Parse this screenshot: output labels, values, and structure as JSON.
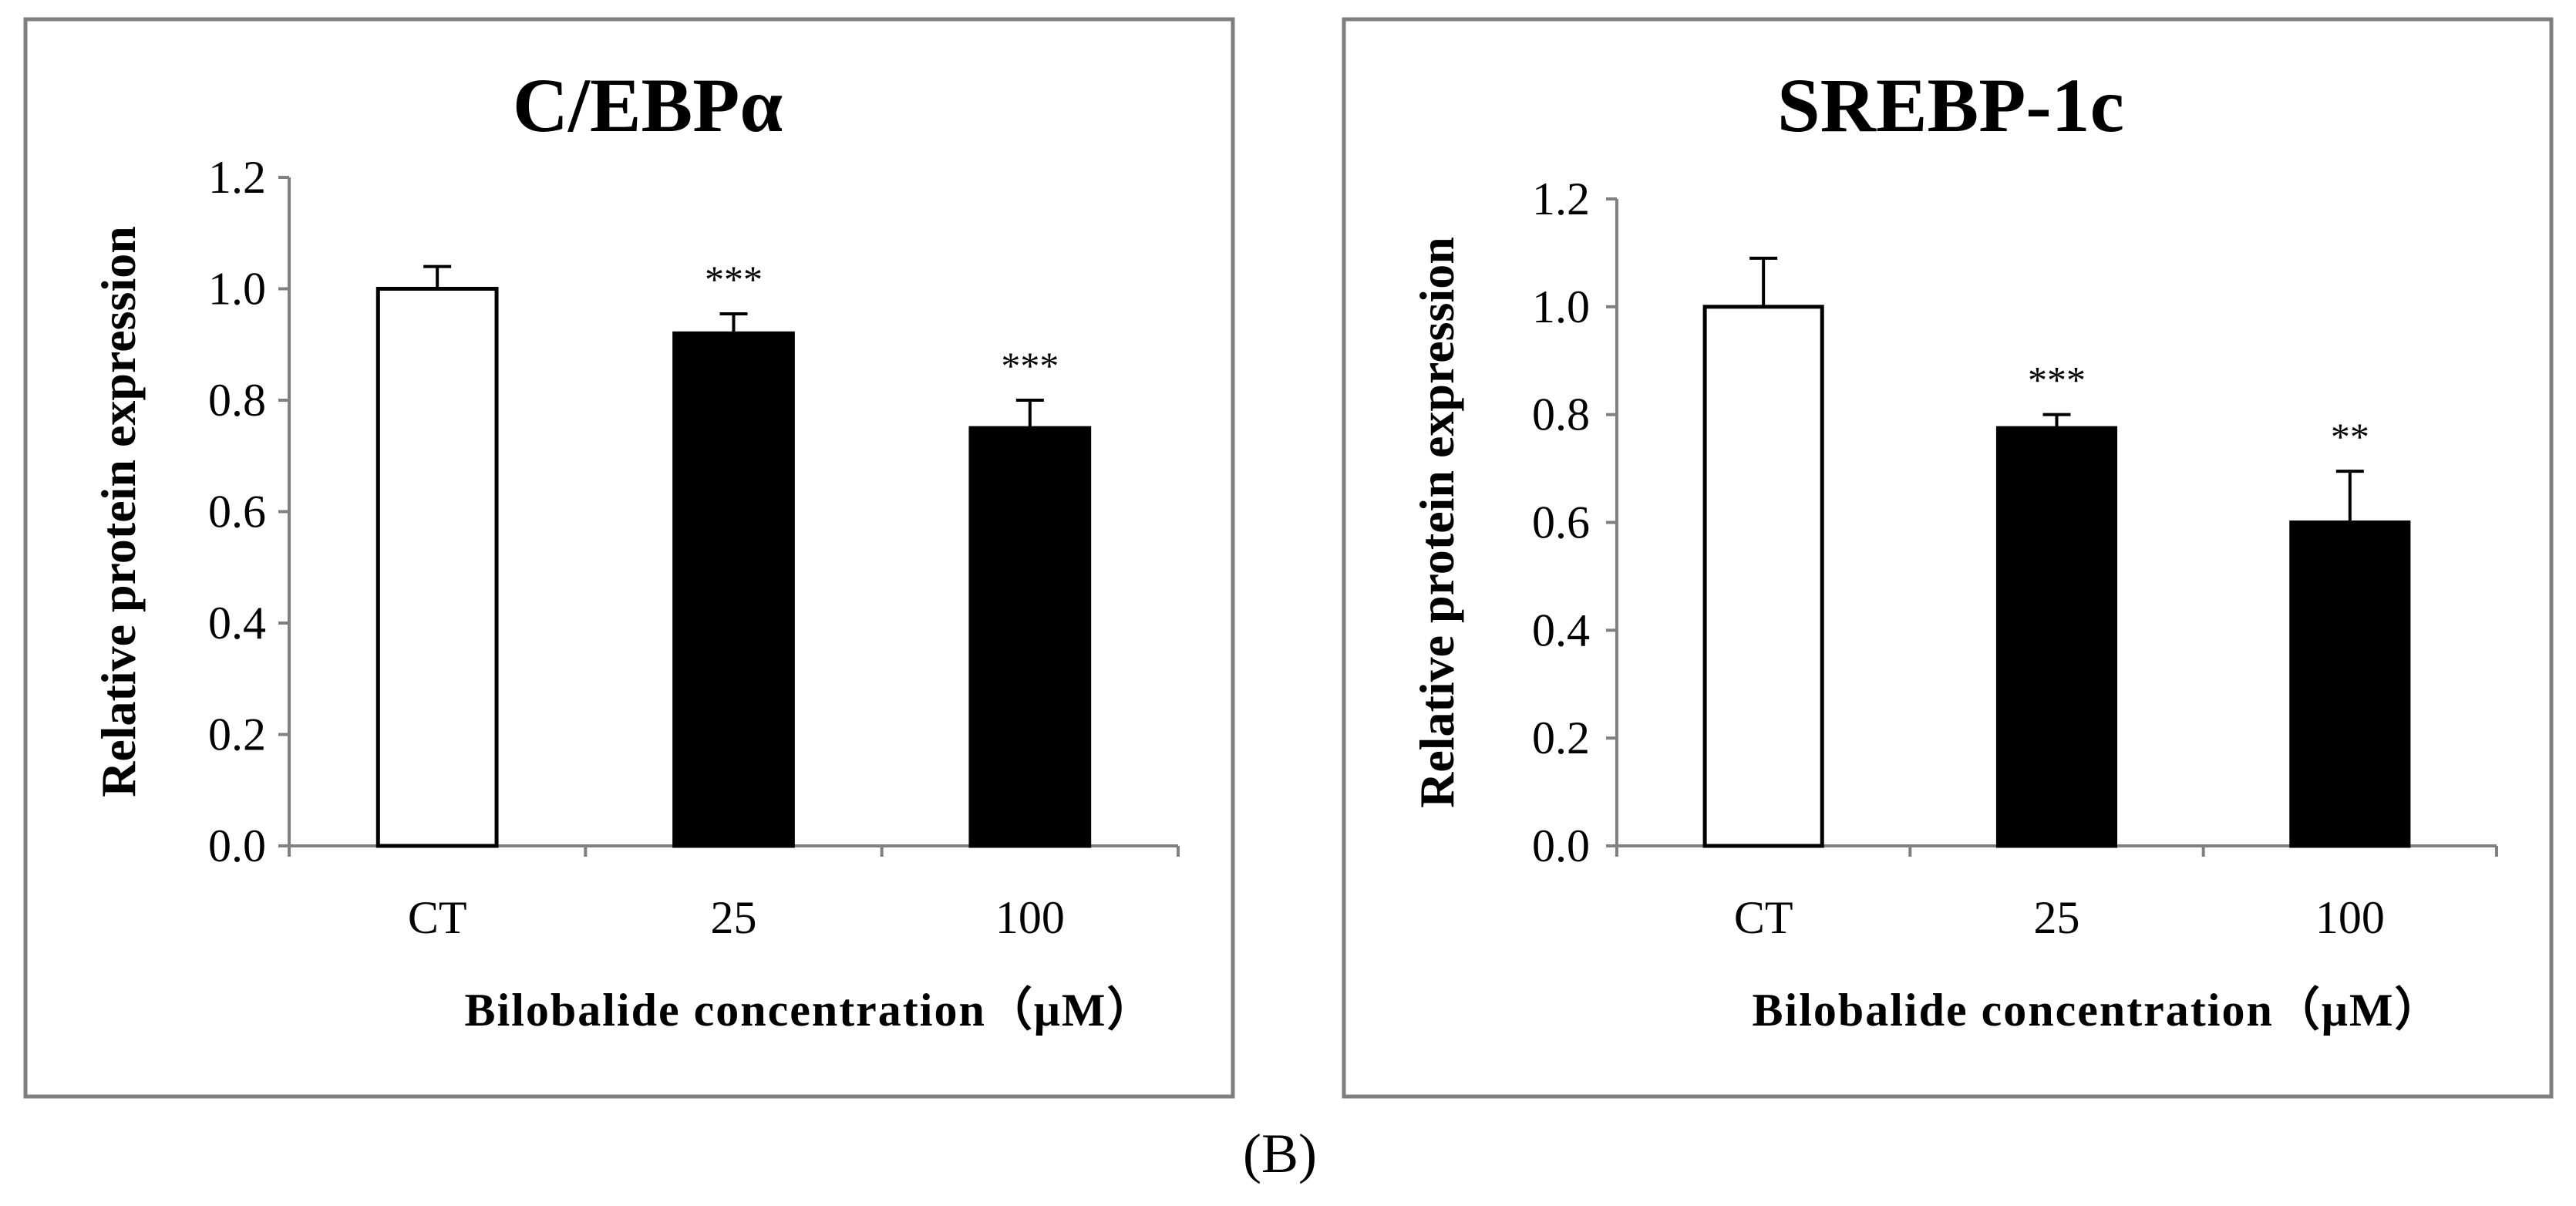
{
  "chart_data": [
    {
      "type": "bar",
      "title": "C/EBPα",
      "xlabel": "Bilobalide concentration（μM）",
      "ylabel": "Relative protein expression",
      "categories": [
        "CT",
        "25",
        "100"
      ],
      "values": [
        1.0,
        0.92,
        0.75
      ],
      "errors": [
        0.04,
        0.035,
        0.05
      ],
      "significance": [
        "",
        "***",
        "***"
      ],
      "bar_colors": [
        "#ffffff",
        "#000000",
        "#000000"
      ],
      "ylim": [
        0.0,
        1.2
      ],
      "yticks": [
        "0.0",
        "0.2",
        "0.4",
        "0.6",
        "0.8",
        "1.0",
        "1.2"
      ]
    },
    {
      "type": "bar",
      "title": "SREBP-1c",
      "xlabel": "Bilobalide concentration（μM）",
      "ylabel": "Relative protein expression",
      "categories": [
        "CT",
        "25",
        "100"
      ],
      "values": [
        1.0,
        0.775,
        0.6
      ],
      "errors": [
        0.09,
        0.025,
        0.095
      ],
      "significance": [
        "",
        "***",
        "**"
      ],
      "bar_colors": [
        "#ffffff",
        "#000000",
        "#000000"
      ],
      "ylim": [
        0.0,
        1.2
      ],
      "yticks": [
        "0.0",
        "0.2",
        "0.4",
        "0.6",
        "0.8",
        "1.0",
        "1.2"
      ]
    }
  ],
  "caption": "(B)"
}
